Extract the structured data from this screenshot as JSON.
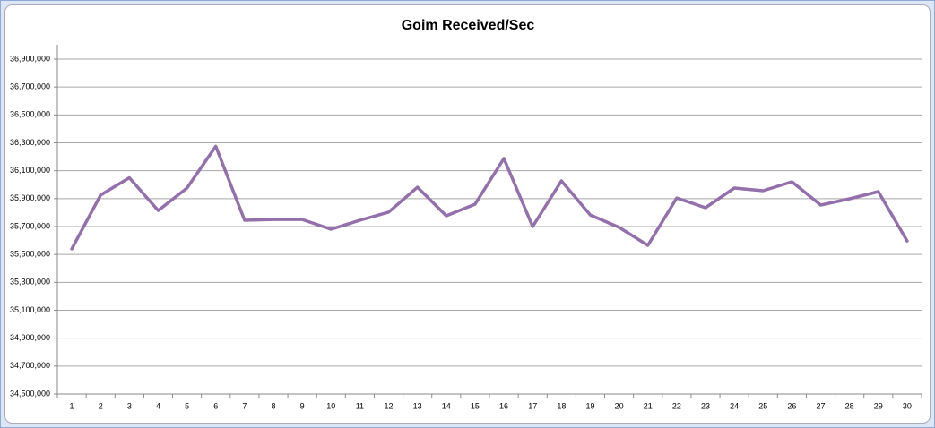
{
  "chart_data": {
    "type": "line",
    "title": "Goim Received/Sec",
    "categories": [
      "1",
      "2",
      "3",
      "4",
      "5",
      "6",
      "7",
      "8",
      "9",
      "10",
      "11",
      "12",
      "13",
      "14",
      "15",
      "16",
      "17",
      "18",
      "19",
      "20",
      "21",
      "22",
      "23",
      "24",
      "25",
      "26",
      "27",
      "28",
      "29",
      "30"
    ],
    "series": [
      {
        "name": "Goim Received/Sec",
        "color": "#9370ab",
        "values": [
          35540000,
          35925000,
          36050000,
          35815000,
          35976000,
          36275000,
          35745000,
          35751000,
          35751000,
          35681000,
          35745000,
          35803000,
          35982000,
          35777000,
          35860000,
          36188000,
          35700000,
          36027000,
          35783000,
          35694000,
          35565000,
          35905000,
          35835000,
          35976000,
          35957000,
          36021000,
          35854000,
          35899000,
          35950000,
          35597000
        ]
      }
    ],
    "ylim": [
      34500000,
      36900000
    ],
    "yticks": [
      {
        "value": 34500000,
        "label": "34,500,000"
      },
      {
        "value": 34700000,
        "label": "34,700,000"
      },
      {
        "value": 34900000,
        "label": "34,900,000"
      },
      {
        "value": 35100000,
        "label": "35,100,000"
      },
      {
        "value": 35300000,
        "label": "35,300,000"
      },
      {
        "value": 35500000,
        "label": "35,500,000"
      },
      {
        "value": 35700000,
        "label": "35,700,000"
      },
      {
        "value": 35900000,
        "label": "35,900,000"
      },
      {
        "value": 36100000,
        "label": "36,100,000"
      },
      {
        "value": 36300000,
        "label": "36,300,000"
      },
      {
        "value": 36500000,
        "label": "36,500,000"
      },
      {
        "value": 36700000,
        "label": "36,700,000"
      },
      {
        "value": 36900000,
        "label": "36,900,000"
      }
    ],
    "grid": true
  }
}
